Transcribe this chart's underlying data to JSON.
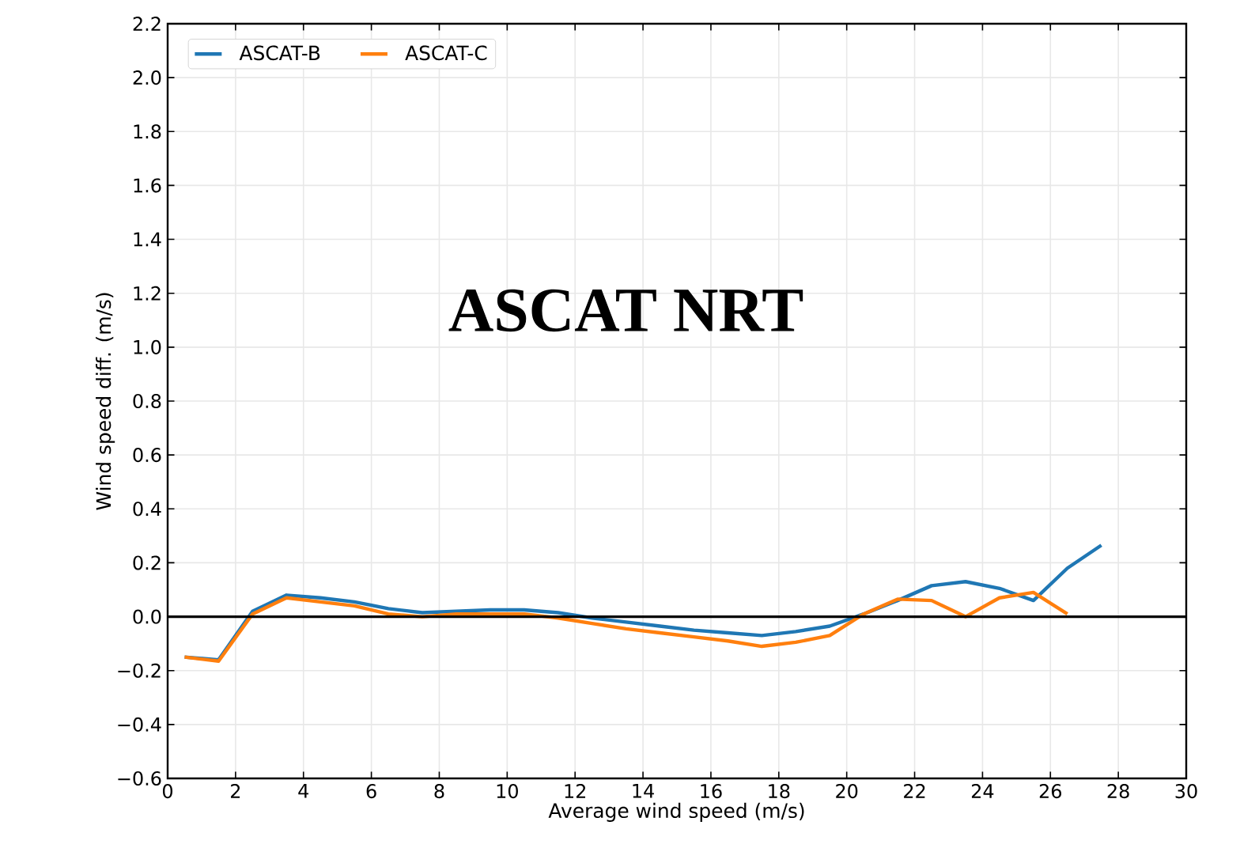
{
  "chart_data": {
    "type": "line",
    "xlabel": "Average wind speed (m/s)",
    "ylabel": "Wind speed diff. (m/s)",
    "annotations": [
      "ASCAT NRT"
    ],
    "x": [
      0.5,
      1.5,
      2.5,
      3.5,
      4.5,
      5.5,
      6.5,
      7.5,
      8.5,
      9.5,
      10.5,
      11.5,
      12.5,
      13.5,
      14.5,
      15.5,
      16.5,
      17.5,
      18.5,
      19.5,
      20.5,
      21.5,
      22.5,
      23.5,
      24.5,
      25.5,
      26.5,
      27.5
    ],
    "series": [
      {
        "name": "ASCAT-B",
        "color": "#1f77b4",
        "values": [
          -0.15,
          -0.16,
          0.02,
          0.08,
          0.07,
          0.055,
          0.03,
          0.015,
          0.02,
          0.025,
          0.025,
          0.015,
          -0.005,
          -0.02,
          -0.035,
          -0.05,
          -0.06,
          -0.07,
          -0.055,
          -0.035,
          0.01,
          0.06,
          0.115,
          0.13,
          0.105,
          0.06,
          0.18,
          0.265
        ]
      },
      {
        "name": "ASCAT-C",
        "color": "#ff7f0e",
        "values": [
          -0.15,
          -0.165,
          0.01,
          0.07,
          0.055,
          0.04,
          0.01,
          0.0,
          0.01,
          0.01,
          0.01,
          -0.005,
          -0.025,
          -0.045,
          -0.06,
          -0.075,
          -0.09,
          -0.11,
          -0.095,
          -0.07,
          0.01,
          0.065,
          0.06,
          0.0,
          0.07,
          0.09,
          0.01,
          null
        ]
      }
    ],
    "xlim": [
      0,
      30
    ],
    "ylim": [
      -0.6,
      2.2
    ],
    "xticks": [
      0,
      2,
      4,
      6,
      8,
      10,
      12,
      14,
      16,
      18,
      20,
      22,
      24,
      26,
      28,
      30
    ],
    "yticks": [
      {
        "value": -0.6,
        "label": "−0.6"
      },
      {
        "value": -0.4,
        "label": "−0.4"
      },
      {
        "value": -0.2,
        "label": "−0.2"
      },
      {
        "value": 0,
        "label": "0.0"
      },
      {
        "value": 0.2,
        "label": "0.2"
      },
      {
        "value": 0.4,
        "label": "0.4"
      },
      {
        "value": 0.6,
        "label": "0.6"
      },
      {
        "value": 0.8,
        "label": "0.8"
      },
      {
        "value": 1.0,
        "label": "1.0"
      },
      {
        "value": 1.2,
        "label": "1.2"
      },
      {
        "value": 1.4,
        "label": "1.4"
      },
      {
        "value": 1.6,
        "label": "1.6"
      },
      {
        "value": 1.8,
        "label": "1.8"
      },
      {
        "value": 2.0,
        "label": "2.0"
      },
      {
        "value": 2.2,
        "label": "2.2"
      }
    ],
    "ref_lines": [
      {
        "axis": "y",
        "value": 0,
        "color": "#000000"
      }
    ],
    "grid": true,
    "legend": "top left",
    "marker": "none",
    "line_style": "solid"
  }
}
